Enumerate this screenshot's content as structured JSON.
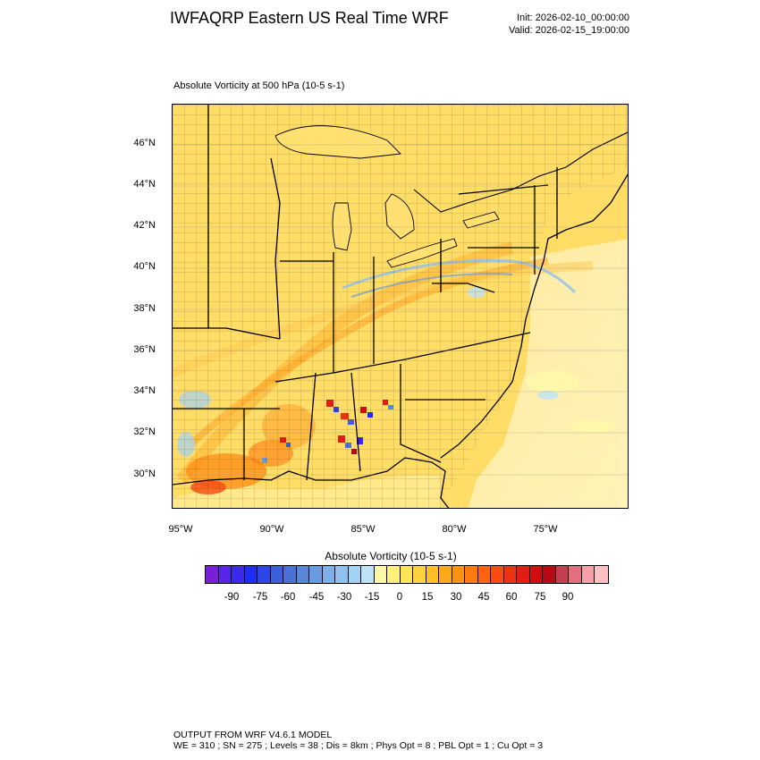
{
  "header": {
    "title": "IWFAQRP Eastern US Real Time WRF",
    "init": "Init: 2026-02-10_00:00:00",
    "valid": "Valid: 2026-02-15_19:00:00"
  },
  "plot": {
    "subtitle": "Absolute Vorticity at 500 hPa   (10-5 s-1)",
    "lat_labels": [
      "46°N",
      "44°N",
      "42°N",
      "40°N",
      "38°N",
      "36°N",
      "34°N",
      "32°N",
      "30°N"
    ],
    "lon_labels": [
      "95°W",
      "90°W",
      "85°W",
      "80°W",
      "75°W"
    ]
  },
  "colorbar": {
    "title": "Absolute Vorticity  (10-5 s-1)",
    "labels": [
      "-90",
      "-75",
      "-60",
      "-45",
      "-30",
      "-15",
      "0",
      "15",
      "30",
      "45",
      "60",
      "75",
      "90"
    ],
    "colors": [
      "#7a1fd8",
      "#5a24e4",
      "#3d28ee",
      "#1f2cf4",
      "#2d47e6",
      "#3c5fdc",
      "#4a72d6",
      "#5987d8",
      "#6a9be0",
      "#7caee8",
      "#8fc0ef",
      "#a4d2f4",
      "#bee2f8",
      "#fff7a8",
      "#fff07c",
      "#ffe45a",
      "#ffd23f",
      "#ffbe28",
      "#ffa81a",
      "#ff9214",
      "#ff7a10",
      "#ff6210",
      "#f84a12",
      "#ec3214",
      "#e41c16",
      "#d00e12",
      "#b80a14",
      "#c44050",
      "#e0707e",
      "#f5a0a8",
      "#ffc0c4"
    ]
  },
  "footer": {
    "line1": "OUTPUT FROM WRF V4.6.1 MODEL",
    "line2": "WE = 310 ; SN = 275 ; Levels = 38 ; Dis = 8km ; Phys Opt = 8 ; PBL Opt = 1 ; Cu Opt = 3"
  }
}
